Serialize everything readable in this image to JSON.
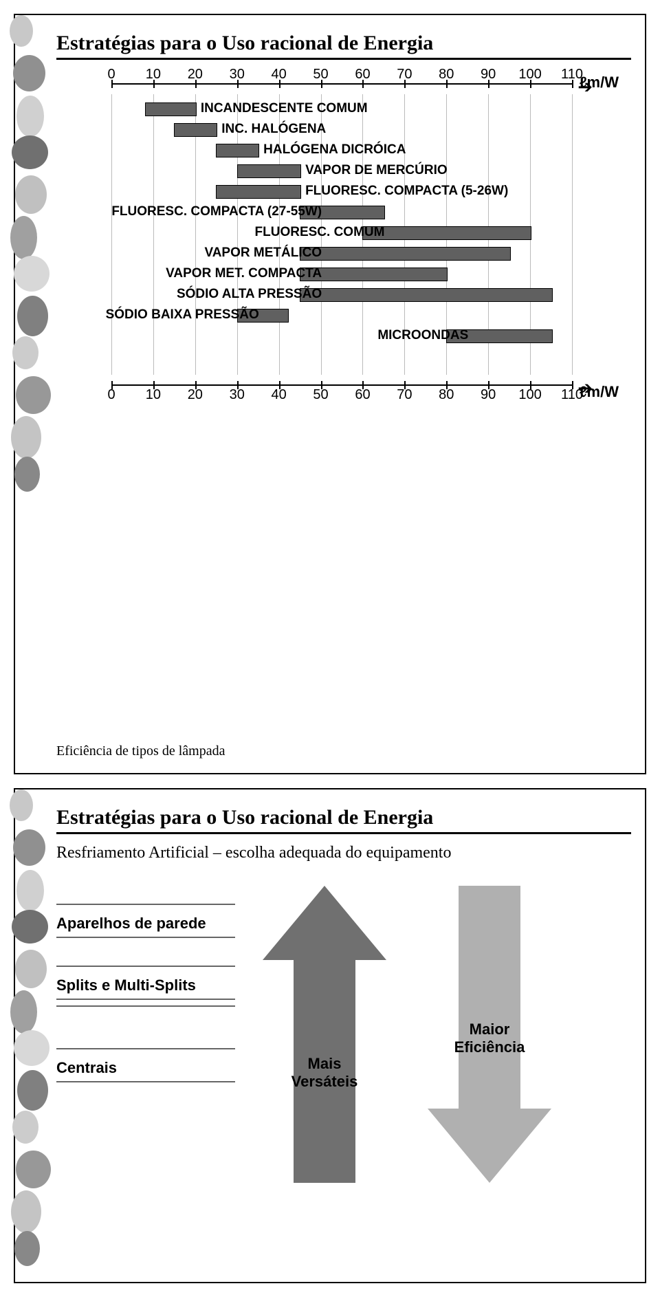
{
  "slide1": {
    "title": "Estratégias para o Uso racional de Energia",
    "caption": "Eficiência de tipos de lâmpada",
    "axis": {
      "unit": "ℓm/W",
      "min": 0,
      "max": 110,
      "step": 10,
      "ticks": [
        0,
        10,
        20,
        30,
        40,
        50,
        60,
        70,
        80,
        90,
        100,
        110
      ]
    },
    "bars": [
      {
        "label": "INCANDESCENTE COMUM",
        "from": 8,
        "to": 20,
        "label_side": "right"
      },
      {
        "label": "INC. HALÓGENA",
        "from": 15,
        "to": 25,
        "label_side": "right"
      },
      {
        "label": "HALÓGENA DICRÓICA",
        "from": 25,
        "to": 35,
        "label_side": "right"
      },
      {
        "label": "VAPOR DE MERCÚRIO",
        "from": 30,
        "to": 45,
        "label_side": "right"
      },
      {
        "label": "FLUORESC. COMPACTA (5-26W)",
        "from": 25,
        "to": 45,
        "label_side": "right"
      },
      {
        "label": "FLUORESC. COMPACTA (27-55W)",
        "from": 45,
        "to": 65,
        "label_side": "left"
      },
      {
        "label": "FLUORESC. COMUM",
        "from": 60,
        "to": 100,
        "label_side": "left"
      },
      {
        "label": "VAPOR METÁLICO",
        "from": 45,
        "to": 95,
        "label_side": "left"
      },
      {
        "label": "VAPOR MET. COMPACTA",
        "from": 45,
        "to": 80,
        "label_side": "left"
      },
      {
        "label": "SÓDIO ALTA PRESSÃO",
        "from": 45,
        "to": 105,
        "label_side": "left"
      },
      {
        "label": "SÓDIO BAIXA PRESSÃO",
        "from": 30,
        "to": 42,
        "label_side": "left"
      },
      {
        "label": "MICROONDAS",
        "from": 80,
        "to": 105,
        "label_side": "left_of_bar"
      }
    ],
    "bar_color": "#606060",
    "grid_color": "#bbbbbb",
    "font_family": "Comic Sans MS"
  },
  "slide2": {
    "title": "Estratégias para o Uso racional de Energia",
    "subheading": "Resfriamento Artificial – escolha adequada do equipamento",
    "items": [
      "Aparelhos de parede",
      "Splits e Multi-Splits",
      "Centrais"
    ],
    "arrow_up": {
      "label": "Mais\nVersáteis",
      "color": "#707070"
    },
    "arrow_down": {
      "label": "Maior\nEficiência",
      "color": "#b0b0b0"
    }
  },
  "deco": {
    "blob_count": 12,
    "colors": [
      "#c8c8c8",
      "#909090",
      "#d0d0d0",
      "#707070",
      "#c0c0c0",
      "#a0a0a0",
      "#d8d8d8",
      "#808080",
      "#cccccc",
      "#989898",
      "#c4c4c4",
      "#888888"
    ]
  }
}
